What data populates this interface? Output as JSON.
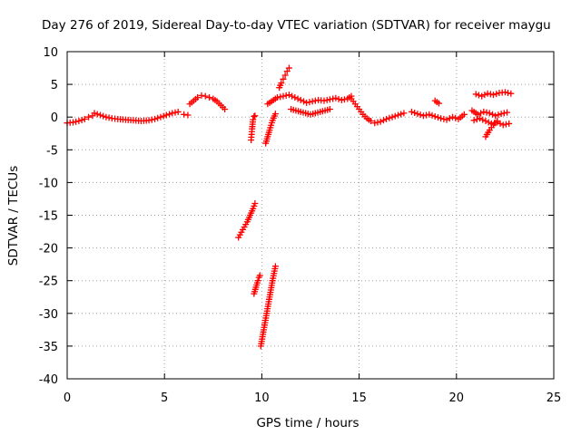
{
  "chart_data": {
    "type": "scatter",
    "title": "Day 276 of 2019, Sidereal Day-to-day VTEC variation (SDTVAR) for receiver maygu",
    "xlabel": "GPS time / hours",
    "ylabel": "SDTVAR / TECUs",
    "xlim": [
      0,
      25
    ],
    "ylim": [
      -40,
      10
    ],
    "xticks": [
      0,
      5,
      10,
      15,
      20,
      25
    ],
    "yticks": [
      -40,
      -35,
      -30,
      -25,
      -20,
      -15,
      -10,
      -5,
      0,
      5,
      10
    ],
    "grid": true,
    "marker": "+",
    "color": "#ff0000",
    "series": [
      {
        "name": "SDTVAR",
        "segments": [
          {
            "x": [
              0.0,
              0.3,
              0.6,
              0.9,
              1.1,
              1.3
            ],
            "y": [
              -0.9,
              -0.8,
              -0.6,
              -0.3,
              0.0,
              0.2
            ]
          },
          {
            "x": [
              1.4,
              1.7,
              2.0,
              2.3,
              2.6,
              3.0,
              3.4,
              3.8,
              4.2,
              4.5,
              4.8,
              5.1,
              5.4,
              5.7
            ],
            "y": [
              0.6,
              0.3,
              0.0,
              -0.2,
              -0.3,
              -0.4,
              -0.5,
              -0.6,
              -0.5,
              -0.3,
              0.0,
              0.3,
              0.6,
              0.8
            ]
          },
          {
            "x": [
              6.0,
              6.2
            ],
            "y": [
              0.4,
              0.3
            ]
          },
          {
            "x": [
              6.3,
              6.5,
              6.7,
              6.9,
              7.1,
              7.3,
              7.5,
              7.7,
              7.9,
              8.1
            ],
            "y": [
              2.0,
              2.5,
              3.0,
              3.3,
              3.2,
              3.0,
              2.8,
              2.4,
              1.8,
              1.2
            ]
          },
          {
            "x": [
              8.8,
              8.95,
              9.1,
              9.25,
              9.4,
              9.55,
              9.65
            ],
            "y": [
              -18.4,
              -17.6,
              -16.8,
              -16.0,
              -15.0,
              -14.0,
              -13.2
            ]
          },
          {
            "x": [
              9.45,
              9.5,
              9.55,
              9.6,
              9.65
            ],
            "y": [
              -3.5,
              -1.8,
              -0.4,
              0.1,
              0.2
            ]
          },
          {
            "x": [
              9.6,
              9.7,
              9.8,
              9.85,
              9.9
            ],
            "y": [
              -27.0,
              -26.0,
              -25.0,
              -24.5,
              -24.2
            ]
          },
          {
            "x": [
              9.95,
              10.1,
              10.25,
              10.4,
              10.55,
              10.7
            ],
            "y": [
              -35.0,
              -32.5,
              -30.0,
              -27.5,
              -25.0,
              -22.8
            ]
          },
          {
            "x": [
              10.2,
              10.3,
              10.4,
              10.55,
              10.7
            ],
            "y": [
              -4.0,
              -3.0,
              -2.0,
              -0.5,
              0.5
            ]
          },
          {
            "x": [
              10.9,
              11.0,
              11.1,
              11.2,
              11.3,
              11.4
            ],
            "y": [
              4.5,
              5.2,
              5.8,
              6.4,
              7.0,
              7.5
            ]
          },
          {
            "x": [
              10.3,
              10.5,
              10.8,
              11.1,
              11.4,
              11.7,
              12.0,
              12.3,
              12.6,
              12.9,
              13.2,
              13.5,
              13.8,
              14.1,
              14.4,
              14.6
            ],
            "y": [
              2.0,
              2.4,
              3.0,
              3.2,
              3.4,
              3.0,
              2.6,
              2.2,
              2.4,
              2.6,
              2.5,
              2.7,
              2.9,
              2.6,
              2.8,
              3.2
            ]
          },
          {
            "x": [
              11.5,
              12.0,
              12.5,
              13.0,
              13.5
            ],
            "y": [
              1.2,
              0.8,
              0.4,
              0.8,
              1.2
            ]
          },
          {
            "x": [
              14.6,
              14.8,
              15.0,
              15.2,
              15.4,
              15.6,
              15.8,
              16.1,
              16.4,
              16.7,
              17.0,
              17.3
            ],
            "y": [
              2.8,
              2.0,
              1.2,
              0.4,
              -0.2,
              -0.6,
              -0.9,
              -0.7,
              -0.3,
              0.0,
              0.3,
              0.6
            ]
          },
          {
            "x": [
              17.7,
              18.0,
              18.3,
              18.6,
              18.9,
              19.2,
              19.5,
              19.8,
              20.1,
              20.4
            ],
            "y": [
              0.8,
              0.5,
              0.2,
              0.4,
              0.1,
              -0.2,
              -0.4,
              0.0,
              -0.3,
              0.4
            ]
          },
          {
            "x": [
              18.9,
              19.1
            ],
            "y": [
              2.5,
              2.1
            ]
          },
          {
            "x": [
              21.0,
              21.3,
              21.6,
              21.9,
              22.2,
              22.5,
              22.8
            ],
            "y": [
              3.5,
              3.2,
              3.6,
              3.4,
              3.7,
              3.8,
              3.6
            ]
          },
          {
            "x": [
              20.8,
              21.1,
              21.4,
              21.7,
              22.0,
              22.3,
              22.6
            ],
            "y": [
              1.0,
              0.4,
              0.8,
              0.6,
              0.2,
              0.5,
              0.7
            ]
          },
          {
            "x": [
              20.9,
              21.2,
              21.5,
              21.8,
              22.1,
              22.4,
              22.7
            ],
            "y": [
              -0.5,
              -0.2,
              -0.6,
              -1.0,
              -0.8,
              -1.2,
              -1.0
            ]
          },
          {
            "x": [
              21.5,
              21.7,
              21.9,
              22.1
            ],
            "y": [
              -3.0,
              -2.0,
              -1.2,
              -0.6
            ]
          }
        ]
      }
    ]
  }
}
